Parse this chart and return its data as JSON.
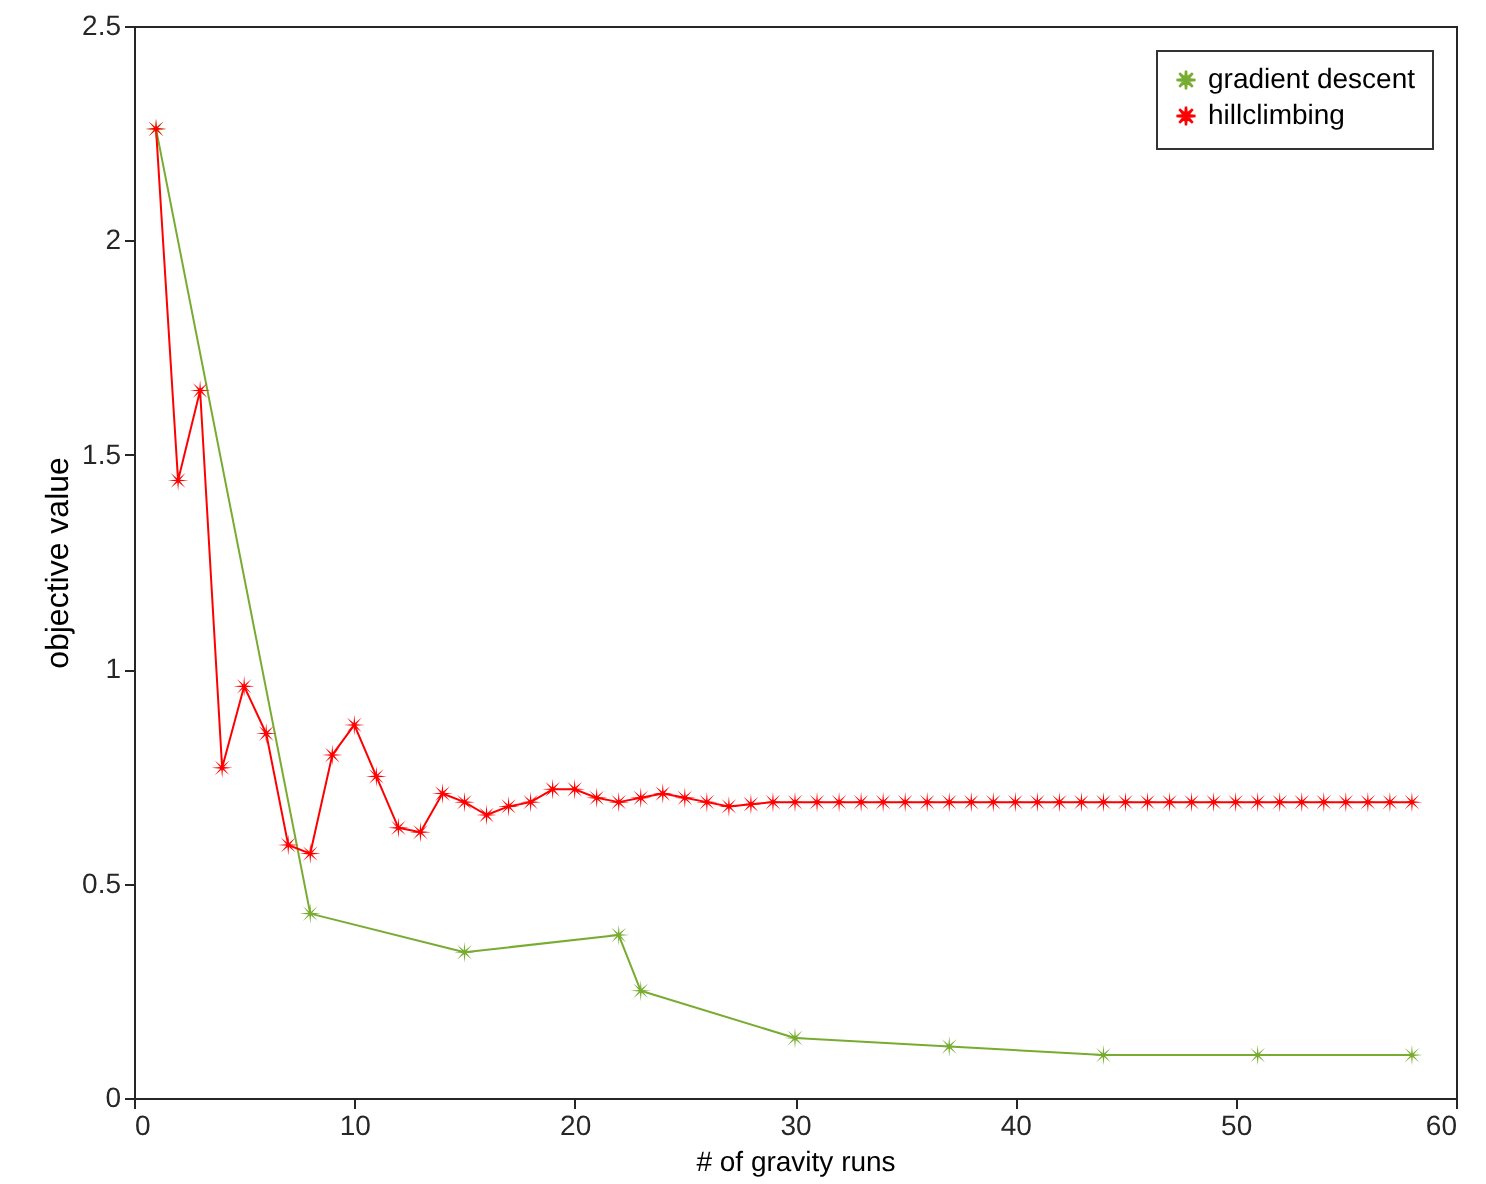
{
  "chart_data": {
    "type": "line",
    "xlabel": "# of gravity runs",
    "ylabel": "objective value",
    "xlim": [
      0,
      60
    ],
    "xticks": [
      0,
      10,
      20,
      30,
      40,
      50,
      60
    ],
    "ylim": [
      0,
      2.5
    ],
    "yticks": [
      {
        "value": 0,
        "label": "0"
      },
      0.5,
      {
        "value": 1,
        "label": "1"
      },
      1.5,
      {
        "value": 2,
        "label": "2"
      },
      2.5
    ],
    "grid": false,
    "legend": "top right",
    "marker": "star",
    "line_style": "solid",
    "series": [
      {
        "name": "gradient descent",
        "color": "#77ac30",
        "x": [
          1,
          8,
          15,
          22,
          23,
          30,
          37,
          44,
          51,
          58
        ],
        "values": [
          2.26,
          0.43,
          0.34,
          0.38,
          0.25,
          0.14,
          0.12,
          0.1,
          0.1,
          0.1
        ]
      },
      {
        "name": "hillclimbing",
        "color": "#ff0000",
        "x": [
          1,
          2,
          3,
          4,
          5,
          6,
          7,
          8,
          9,
          10,
          11,
          12,
          13,
          14,
          15,
          16,
          17,
          18,
          19,
          20,
          21,
          22,
          23,
          24,
          25,
          26,
          27,
          28,
          29,
          30,
          31,
          32,
          33,
          34,
          35,
          36,
          37,
          38,
          39,
          40,
          41,
          42,
          43,
          44,
          45,
          46,
          47,
          48,
          49,
          50,
          51,
          52,
          53,
          54,
          55,
          56,
          57,
          58
        ],
        "values": [
          2.26,
          1.44,
          1.65,
          0.77,
          0.96,
          0.85,
          0.59,
          0.57,
          0.8,
          0.87,
          0.75,
          0.63,
          0.62,
          0.71,
          0.69,
          0.66,
          0.68,
          0.69,
          0.72,
          0.72,
          0.7,
          0.69,
          0.7,
          0.71,
          0.7,
          0.69,
          0.68,
          0.685,
          0.69,
          0.69,
          0.69,
          0.69,
          0.69,
          0.69,
          0.69,
          0.69,
          0.69,
          0.69,
          0.69,
          0.69,
          0.69,
          0.69,
          0.69,
          0.69,
          0.69,
          0.69,
          0.69,
          0.69,
          0.69,
          0.69,
          0.69,
          0.69,
          0.69,
          0.69,
          0.69,
          0.69,
          0.69,
          0.69
        ]
      }
    ]
  }
}
